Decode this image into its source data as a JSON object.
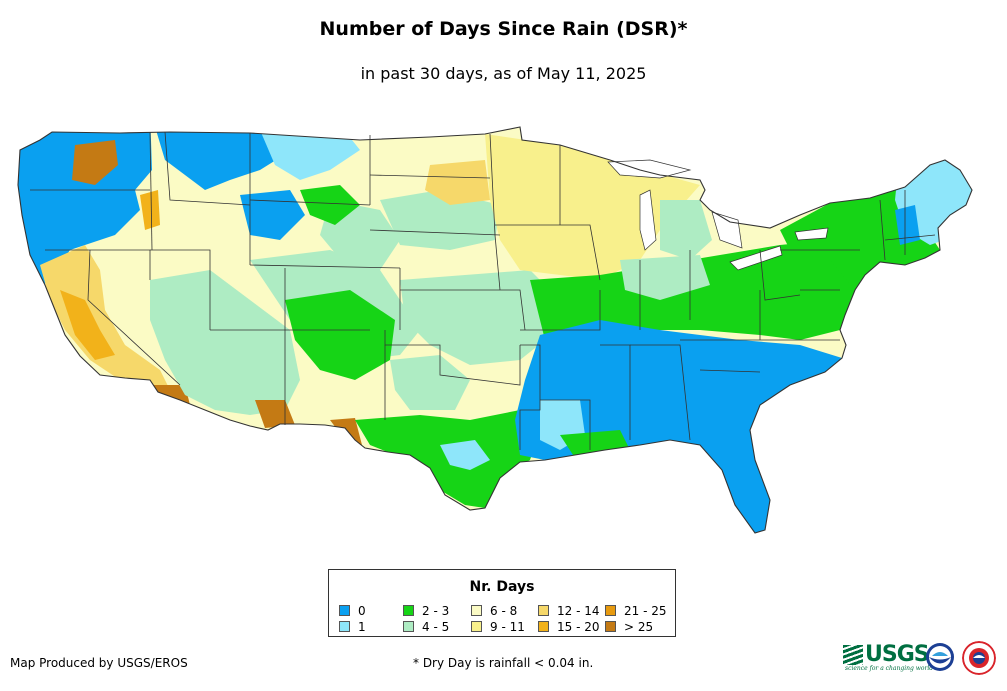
{
  "title": "Number of Days Since Rain (DSR)*",
  "subtitle": "in past 30 days, as of May 11, 2025",
  "legend": {
    "title": "Nr. Days",
    "items": [
      {
        "label": "0",
        "color": "#0aa0f0"
      },
      {
        "label": "1",
        "color": "#8ee6fa"
      },
      {
        "label": "2 - 3",
        "color": "#16d416"
      },
      {
        "label": "4 - 5",
        "color": "#aeecc3"
      },
      {
        "label": "6 - 8",
        "color": "#fbfbc5"
      },
      {
        "label": "9 - 11",
        "color": "#f8f08c"
      },
      {
        "label": "12 - 14",
        "color": "#f6d86a"
      },
      {
        "label": "15 - 20",
        "color": "#f2b21a"
      },
      {
        "label": "21 - 25",
        "color": "#e79a0f"
      },
      {
        "label": "> 25",
        "color": "#c47a14"
      }
    ]
  },
  "footer": {
    "credit": "Map Produced by USGS/EROS",
    "note": "* Dry Day is rainfall < 0.04 in."
  },
  "logos": {
    "usgs": "USGS",
    "usgs_tagline": "science for a changing world",
    "noaa": "noaa-logo",
    "nws": "nws-logo"
  }
}
